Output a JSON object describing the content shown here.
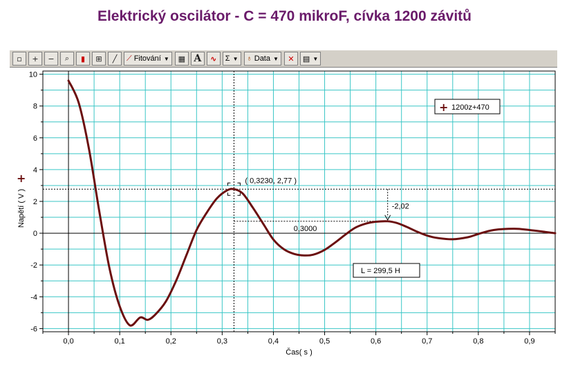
{
  "chart_data": {
    "type": "line",
    "title": "Elektrický oscilátor - C = 470 mikroF, cívka 1200 závitů",
    "xlabel": "Čas( s )",
    "ylabel": "Napětí ( V )",
    "xlim": [
      -0.05,
      0.95
    ],
    "ylim": [
      -6.2,
      10.2
    ],
    "x_ticks": [
      "0,0",
      "0,1",
      "0,2",
      "0,3",
      "0,4",
      "0,5",
      "0,6",
      "0,7",
      "0,8",
      "0,9"
    ],
    "y_ticks": [
      "-6",
      "-4",
      "-2",
      "0",
      "2",
      "4",
      "6",
      "8",
      "10"
    ],
    "grid": true,
    "legend_position": "top-right",
    "series": [
      {
        "name": "1200z+470",
        "color": "#6b0f0f",
        "x": [
          0.0,
          0.02,
          0.04,
          0.06,
          0.08,
          0.1,
          0.12,
          0.14,
          0.155,
          0.17,
          0.19,
          0.21,
          0.23,
          0.25,
          0.27,
          0.29,
          0.31,
          0.323,
          0.34,
          0.36,
          0.38,
          0.4,
          0.42,
          0.44,
          0.46,
          0.478,
          0.5,
          0.52,
          0.54,
          0.56,
          0.58,
          0.6,
          0.623,
          0.64,
          0.66,
          0.68,
          0.7,
          0.72,
          0.75,
          0.78,
          0.8,
          0.83,
          0.87,
          0.9,
          0.93,
          0.95
        ],
        "y": [
          9.6,
          8.2,
          5.3,
          1.4,
          -2.2,
          -4.6,
          -5.8,
          -5.3,
          -5.45,
          -5.1,
          -4.3,
          -3.0,
          -1.4,
          0.2,
          1.3,
          2.2,
          2.7,
          2.77,
          2.5,
          1.6,
          0.6,
          -0.4,
          -1.0,
          -1.3,
          -1.4,
          -1.35,
          -1.05,
          -0.6,
          -0.1,
          0.35,
          0.6,
          0.72,
          0.75,
          0.65,
          0.4,
          0.1,
          -0.15,
          -0.3,
          -0.38,
          -0.25,
          -0.05,
          0.2,
          0.28,
          0.2,
          0.08,
          0.0
        ]
      }
    ],
    "annotations": {
      "point_label": "( 0,3230, 2,77 )",
      "delta_x_label": "0,3000",
      "delta_y_label": "-2,02",
      "result_label": "L = 299,5 H"
    }
  },
  "toolbar": {
    "fit_label": "Fitování",
    "data_label": "Data",
    "text_icon_label": "A",
    "sum_icon_label": "Σ"
  }
}
